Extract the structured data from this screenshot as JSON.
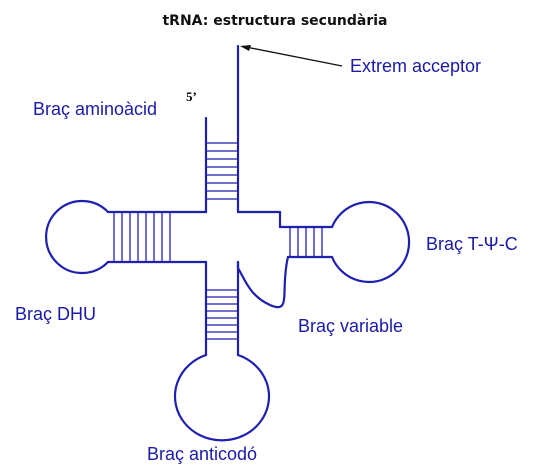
{
  "title": "tRNA: estructura secundària",
  "labels": {
    "acceptor_end": "Extrem acceptor",
    "amino_arm": "Braç aminoàcid",
    "five_prime": "5’",
    "dhu_arm": "Braç DHU",
    "tpsic_arm": "Braç T-Ψ-C",
    "variable_arm": "Braç variable",
    "anticodon_arm": "Braç anticodó"
  },
  "colors": {
    "structure": "#1f1fb0",
    "label": "#1a1aa6",
    "title": "#111111"
  }
}
